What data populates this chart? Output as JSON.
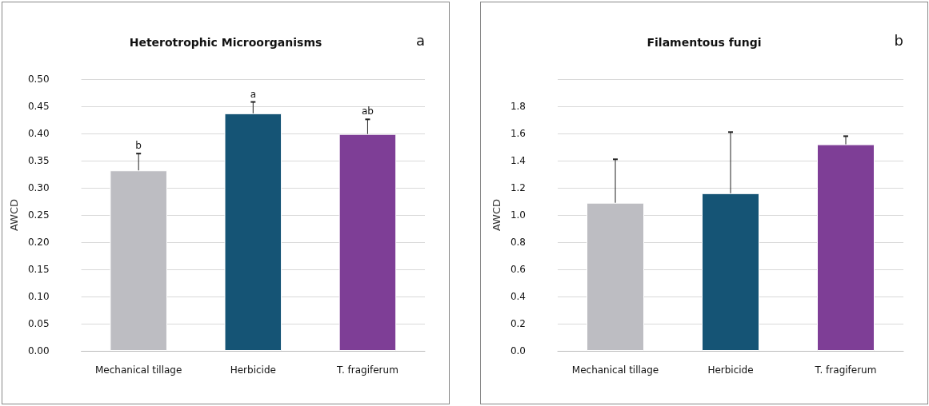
{
  "chart_data": [
    {
      "type": "bar",
      "title": "Heterotrophic Microorganisms",
      "ylabel": "AWCD",
      "categories": [
        "Mechanical tillage",
        "Herbicide",
        "T. fragiferum"
      ],
      "values": [
        0.332,
        0.437,
        0.399
      ],
      "colors": [
        "#bdbdc2",
        "#155475",
        "#7e3e96"
      ],
      "errors": [
        [
          0.332,
          0.363
        ],
        [
          0.437,
          0.458
        ],
        [
          0.399,
          0.426
        ]
      ],
      "ylim": [
        0,
        0.5
      ],
      "yticks": [
        {
          "value": 0,
          "label": "0.00"
        },
        {
          "value": 0.05,
          "label": "0.05"
        },
        {
          "value": 0.1,
          "label": "0.10"
        },
        {
          "value": 0.15,
          "label": "0.15"
        },
        {
          "value": 0.2,
          "label": "0.20"
        },
        {
          "value": 0.25,
          "label": "0.25"
        },
        {
          "value": 0.3,
          "label": "0.30"
        },
        {
          "value": 0.35,
          "label": "0.35"
        },
        {
          "value": 0.4,
          "label": "0.40"
        },
        {
          "value": 0.45,
          "label": "0.45"
        },
        {
          "value": 0.5,
          "label": "0.50"
        }
      ],
      "grid": "y",
      "annotations": [
        "a",
        {
          "text": "b",
          "x": "Mechanical tillage",
          "y": 0.363
        },
        {
          "text": "a",
          "x": "Herbicide",
          "y": 0.458
        },
        {
          "text": "ab",
          "x": "T. fragiferum",
          "y": 0.426
        }
      ]
    },
    {
      "type": "bar",
      "title": "Filamentous fungi",
      "ylabel": "AWCD",
      "categories": [
        "Mechanical tillage",
        "Herbicide",
        "T. fragiferum"
      ],
      "values": [
        1.09,
        1.16,
        1.52
      ],
      "colors": [
        "#bdbdc2",
        "#155475",
        "#7e3e96"
      ],
      "errors": [
        [
          1.09,
          1.41
        ],
        [
          1.16,
          1.61
        ],
        [
          1.52,
          1.58
        ]
      ],
      "ylim": [
        0,
        2.0
      ],
      "yticks": [
        {
          "value": 0,
          "label": "0.0"
        },
        0.2,
        0.4,
        0.6,
        0.8,
        {
          "value": 1.0,
          "label": "1.0"
        },
        1.2,
        1.4,
        1.6,
        1.8,
        {
          "value": 2.0,
          "label": null
        }
      ],
      "grid": "y",
      "annotations": [
        "b"
      ]
    }
  ]
}
